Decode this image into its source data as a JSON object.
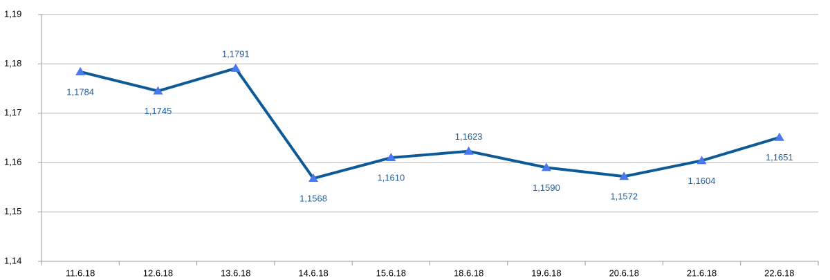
{
  "chart_data": {
    "type": "line",
    "categories": [
      "11.6.18",
      "12.6.18",
      "13.6.18",
      "14.6.18",
      "15.6.18",
      "18.6.18",
      "19.6.18",
      "20.6.18",
      "21.6.18",
      "22.6.18"
    ],
    "series": [
      {
        "color": "#0d5a96",
        "marker_color": "#4a78ee",
        "values": [
          1.1784,
          1.1745,
          1.1791,
          1.1568,
          1.161,
          1.1623,
          1.159,
          1.1572,
          1.1604,
          1.1651
        ],
        "value_labels": [
          "1,1784",
          "1,1745",
          "1,1791",
          "1,1568",
          "1,1610",
          "1,1623",
          "1,1590",
          "1,1572",
          "1,1604",
          "1,1651"
        ]
      }
    ],
    "ylim": [
      1.14,
      1.19
    ],
    "yticks": [
      {
        "value": 1.14,
        "label": "1,14"
      },
      {
        "value": 1.15,
        "label": "1,15"
      },
      {
        "value": 1.16,
        "label": "1,16"
      },
      {
        "value": 1.17,
        "label": "1,17"
      },
      {
        "value": 1.18,
        "label": "1,18"
      },
      {
        "value": 1.19,
        "label": "1,19"
      }
    ],
    "grid": true
  }
}
